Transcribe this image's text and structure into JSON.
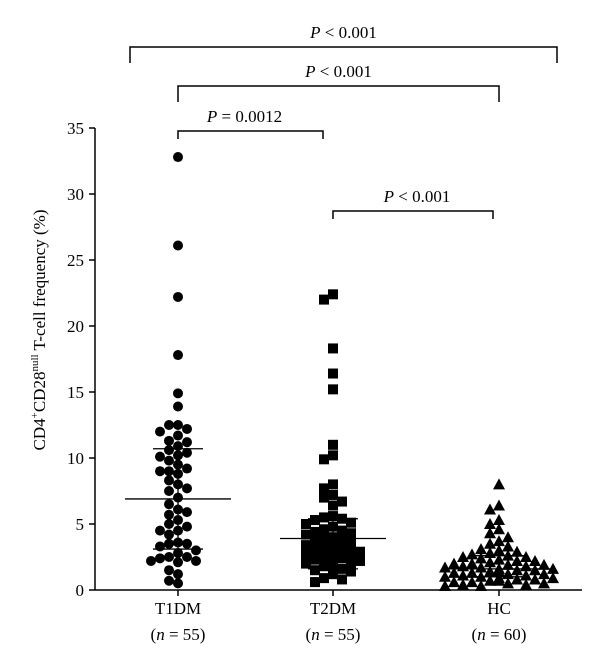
{
  "chart_data": {
    "type": "scatter",
    "chart_style": "dot-plot with mean and SD bars",
    "ylabel": {
      "prefix": "CD4",
      "sup1": "+",
      "mid": "CD28",
      "sup2": "null",
      "suffix": " T-cell frequency (%)"
    },
    "ylim": [
      0,
      35
    ],
    "yticks": [
      "0",
      "5",
      "10",
      "15",
      "20",
      "25",
      "30",
      "35"
    ],
    "grid": false,
    "groups": [
      {
        "name": "T1DM",
        "n_label": "(n = 55)",
        "marker": "circle",
        "mean": 6.9,
        "sd_low": 3.1,
        "sd_high": 10.7,
        "values": [
          32.8,
          26.1,
          22.2,
          17.8,
          14.9,
          13.9,
          12.5,
          12.2,
          12.5,
          12.0,
          11.7,
          11.3,
          11.2,
          10.9,
          10.6,
          10.4,
          10.2,
          10.1,
          9.8,
          9.5,
          9.2,
          9.0,
          9.0,
          8.8,
          8.3,
          8.0,
          7.7,
          7.5,
          7.0,
          6.5,
          6.1,
          5.9,
          5.7,
          5.3,
          5.0,
          4.8,
          4.5,
          4.5,
          4.2,
          3.6,
          3.5,
          3.5,
          3.3,
          3.0,
          2.8,
          2.5,
          2.5,
          2.4,
          2.2,
          2.2,
          2.1,
          1.5,
          1.2,
          0.7,
          0.5
        ]
      },
      {
        "name": "T2DM",
        "n_label": "(n = 55)",
        "marker": "square",
        "mean": 3.9,
        "sd_low": 1.6,
        "sd_high": 5.4,
        "values": [
          22.4,
          22.0,
          18.3,
          16.4,
          15.2,
          11.0,
          10.2,
          9.9,
          8.0,
          7.7,
          7.2,
          7.0,
          6.7,
          6.4,
          5.6,
          5.5,
          5.4,
          5.3,
          5.1,
          5.0,
          4.8,
          4.6,
          4.5,
          4.4,
          4.3,
          4.2,
          4.0,
          3.9,
          3.8,
          3.7,
          3.5,
          3.4,
          3.3,
          3.2,
          3.1,
          3.0,
          2.9,
          2.8,
          2.7,
          2.6,
          2.5,
          2.4,
          2.3,
          2.2,
          2.1,
          2.0,
          1.9,
          1.8,
          1.6,
          1.5,
          1.4,
          1.2,
          0.9,
          0.8,
          0.6
        ]
      },
      {
        "name": "HC",
        "n_label": "(n = 60)",
        "marker": "triangle",
        "mean": 1.6,
        "sd_low": 1.0,
        "sd_high": 2.6,
        "values": [
          8.0,
          6.4,
          6.1,
          5.3,
          5.0,
          4.6,
          4.3,
          4.0,
          3.7,
          3.5,
          3.3,
          3.1,
          3.0,
          2.9,
          2.8,
          2.7,
          2.6,
          2.5,
          2.5,
          2.4,
          2.3,
          2.2,
          2.2,
          2.1,
          2.0,
          2.0,
          1.9,
          1.9,
          1.8,
          1.8,
          1.7,
          1.7,
          1.6,
          1.6,
          1.5,
          1.5,
          1.4,
          1.4,
          1.3,
          1.3,
          1.2,
          1.2,
          1.1,
          1.1,
          1.0,
          1.0,
          0.9,
          0.9,
          0.8,
          0.8,
          0.7,
          0.7,
          0.6,
          0.6,
          0.5,
          0.5,
          0.4,
          0.4,
          0.3,
          0.3
        ]
      }
    ],
    "significance": [
      {
        "from": "T1DM",
        "to": "HC",
        "p_symbol": "P",
        "relation": " < 0.001"
      },
      {
        "from": "T1DM",
        "to": "HC",
        "p_symbol": "P",
        "relation": " < 0.001"
      },
      {
        "from": "T1DM",
        "to": "T2DM",
        "p_symbol": "P",
        "relation": " = 0.0012"
      },
      {
        "from": "T2DM",
        "to": "HC",
        "p_symbol": "P",
        "relation": " < 0.001"
      }
    ]
  }
}
